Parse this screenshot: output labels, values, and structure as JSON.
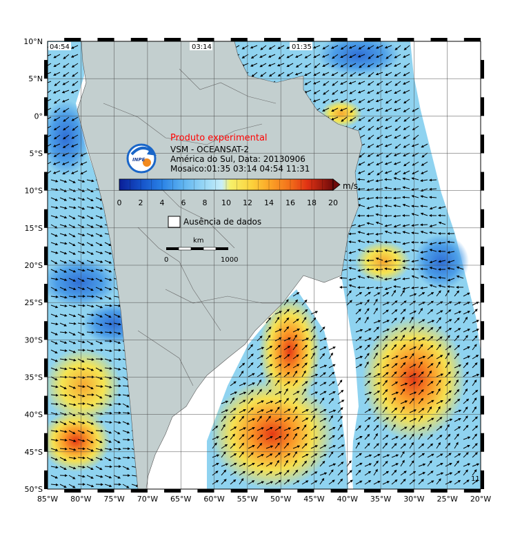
{
  "title": {
    "experimental": "Produto experimental",
    "line1": "VSM - OCEANSAT-2",
    "line2": "América do Sul, Data: 20130906",
    "line3": "Mosaico:01:35 03:14 04:54 11:31"
  },
  "logo_text": "INPE",
  "pass_times": [
    "04:54",
    "03:14",
    "01:35"
  ],
  "corner_label": "11",
  "colorbar": {
    "unit": "m/s",
    "ticks": [
      "0",
      "2",
      "4",
      "6",
      "8",
      "10",
      "12",
      "14",
      "16",
      "18",
      "20"
    ],
    "colors": [
      "#0a1e96",
      "#1450c8",
      "#2a82e6",
      "#5fb4f0",
      "#9ad8f6",
      "#c8eefa",
      "#f6f06a",
      "#fcd23c",
      "#fca628",
      "#f26e1a",
      "#e03214",
      "#b41414",
      "#6e0a0a"
    ]
  },
  "nodata_label": "Ausência de dados",
  "scale": {
    "label": "km",
    "start": "0",
    "end": "1000"
  },
  "lat_labels": [
    "10°N",
    "5°N",
    "0°",
    "5°S",
    "10°S",
    "15°S",
    "20°S",
    "25°S",
    "30°S",
    "35°S",
    "40°S",
    "45°S",
    "50°S"
  ],
  "lon_labels": [
    "85°W",
    "80°W",
    "75°W",
    "70°W",
    "65°W",
    "60°W",
    "55°W",
    "50°W",
    "45°W",
    "40°W",
    "35°W",
    "30°W",
    "25°W",
    "20°W"
  ],
  "colors": {
    "land": "#c3cfcf",
    "ocean_low": "#8fd3f0",
    "ocean_mid": "#4a9ee6",
    "ocean_high": "#f4e24a",
    "ocean_peak": "#e8501a",
    "grid": "#4a4a4a",
    "arrow": "#000000"
  }
}
